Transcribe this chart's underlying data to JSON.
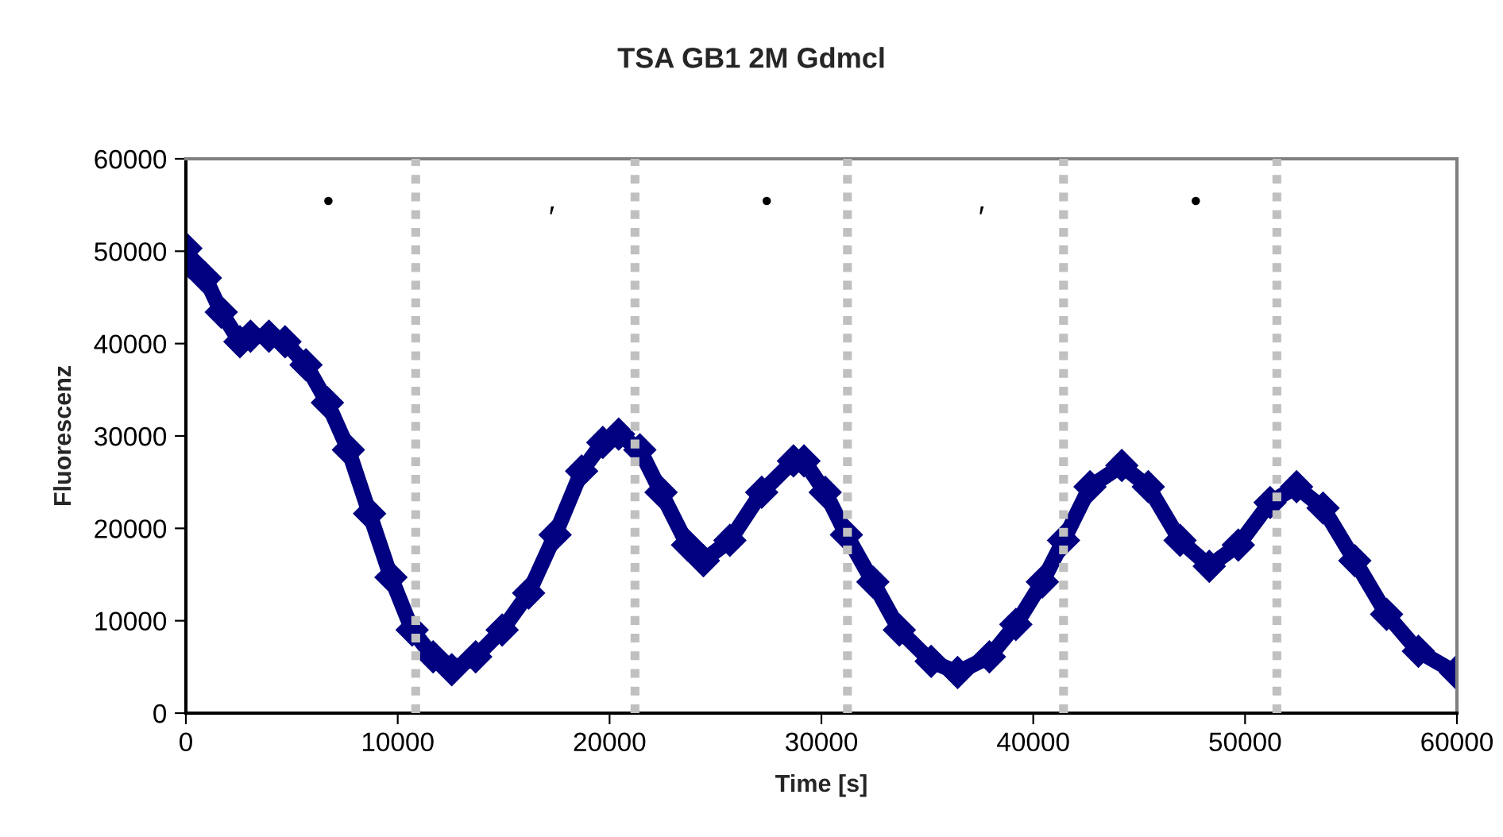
{
  "chart_data": {
    "type": "line",
    "title": "TSA GB1 2M Gdmcl",
    "xlabel": "Time [s]",
    "ylabel": "Fluorescenz",
    "xlim": [
      0,
      60000
    ],
    "xticks": [
      0,
      10000,
      20000,
      30000,
      40000,
      50000,
      60000
    ],
    "ylim": [
      0,
      60000
    ],
    "yticks": [
      0,
      10000,
      20000,
      30000,
      40000,
      50000,
      60000
    ],
    "grid": false,
    "legend": false,
    "marker": "diamond",
    "line_style": "solid",
    "series": [
      {
        "color": "#000080",
        "x": [
          0,
          170,
          920,
          1670,
          2550,
          3050,
          3920,
          4680,
          5670,
          6680,
          7670,
          8670,
          9680,
          10680,
          11670,
          12550,
          13680,
          14930,
          16180,
          17430,
          18680,
          19680,
          20430,
          21430,
          22430,
          23680,
          24430,
          25680,
          27180,
          28680,
          29180,
          30180,
          31180,
          32430,
          33680,
          35180,
          36430,
          37930,
          39180,
          40430,
          41430,
          42680,
          44180,
          45430,
          46930,
          48310,
          49680,
          51180,
          52430,
          53680,
          55180,
          56680,
          58180,
          59930
        ],
        "values": [
          50300,
          48800,
          47100,
          43400,
          40200,
          40800,
          40800,
          40200,
          37700,
          33600,
          28500,
          21600,
          14700,
          9000,
          6100,
          4700,
          6100,
          9000,
          13000,
          19300,
          26200,
          29300,
          30200,
          28500,
          23900,
          18200,
          16500,
          18700,
          23900,
          27300,
          27300,
          23900,
          19300,
          14200,
          9000,
          5600,
          4400,
          6100,
          9600,
          14200,
          18700,
          24500,
          26800,
          24500,
          18700,
          15900,
          18200,
          22800,
          24500,
          22200,
          16500,
          10700,
          6700,
          4400
        ]
      }
    ],
    "ref_lines": [
      {
        "axis": "x",
        "value": 10850,
        "color": "#c0c0c0",
        "line_style": "dotted"
      },
      {
        "axis": "x",
        "value": 21200,
        "color": "#c0c0c0",
        "line_style": "dotted"
      },
      {
        "axis": "x",
        "value": 31230,
        "color": "#c0c0c0",
        "line_style": "dotted"
      },
      {
        "axis": "x",
        "value": 41430,
        "color": "#c0c0c0",
        "line_style": "dotted"
      },
      {
        "axis": "x",
        "value": 51500,
        "color": "#c0c0c0",
        "line_style": "dotted"
      }
    ],
    "annotations": [
      "•",
      "′",
      "•",
      "′",
      "•"
    ]
  }
}
